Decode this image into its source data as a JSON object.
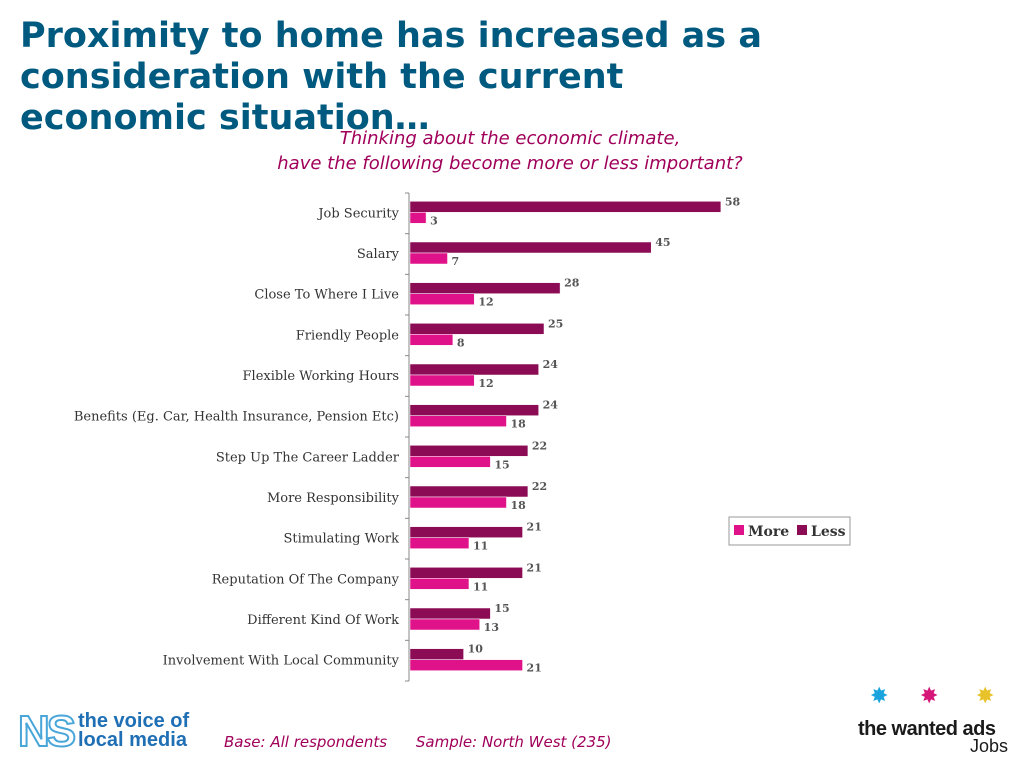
{
  "slide": {
    "title": "Proximity to home has increased as a consideration with the current economic situation…",
    "subtitle_line1": "Thinking about the economic climate,",
    "subtitle_line2": "have the following become more or less important?"
  },
  "footer": {
    "base": "Base: All respondents",
    "sample": "Sample: North West (235)"
  },
  "logos": {
    "ns_mark": "NS",
    "ns_line1": "the voice of",
    "ns_line2": "local media",
    "wanted_ads_name": "the wanted ads",
    "wanted_ads_sub": "Jobs",
    "star_colors": [
      "#1aa3dd",
      "#d6177a",
      "#e8c22a"
    ]
  },
  "colors": {
    "more": "#e0128a",
    "less": "#8b0b55",
    "title": "#005a80",
    "subtitle": "#a0005a"
  },
  "chart_data": {
    "type": "bar",
    "orientation": "horizontal",
    "categories": [
      "Job Security",
      "Salary",
      "Close To Where I Live",
      "Friendly People",
      "Flexible Working Hours",
      "Benefits (Eg. Car, Health Insurance, Pension Etc)",
      "Step Up The Career Ladder",
      "More Responsibility",
      "Stimulating Work",
      "Reputation Of The Company",
      "Different Kind Of Work",
      "Involvement With Local Community"
    ],
    "series": [
      {
        "name": "More",
        "values": [
          3,
          7,
          12,
          8,
          12,
          18,
          15,
          18,
          11,
          11,
          13,
          21
        ]
      },
      {
        "name": "Less",
        "values": [
          58,
          45,
          28,
          25,
          24,
          24,
          22,
          22,
          21,
          21,
          15,
          10
        ]
      }
    ],
    "legend": {
      "position": "right",
      "entries": [
        "More",
        "Less"
      ]
    },
    "xlim": [
      0,
      60
    ],
    "grid": false,
    "data_labels": true
  }
}
